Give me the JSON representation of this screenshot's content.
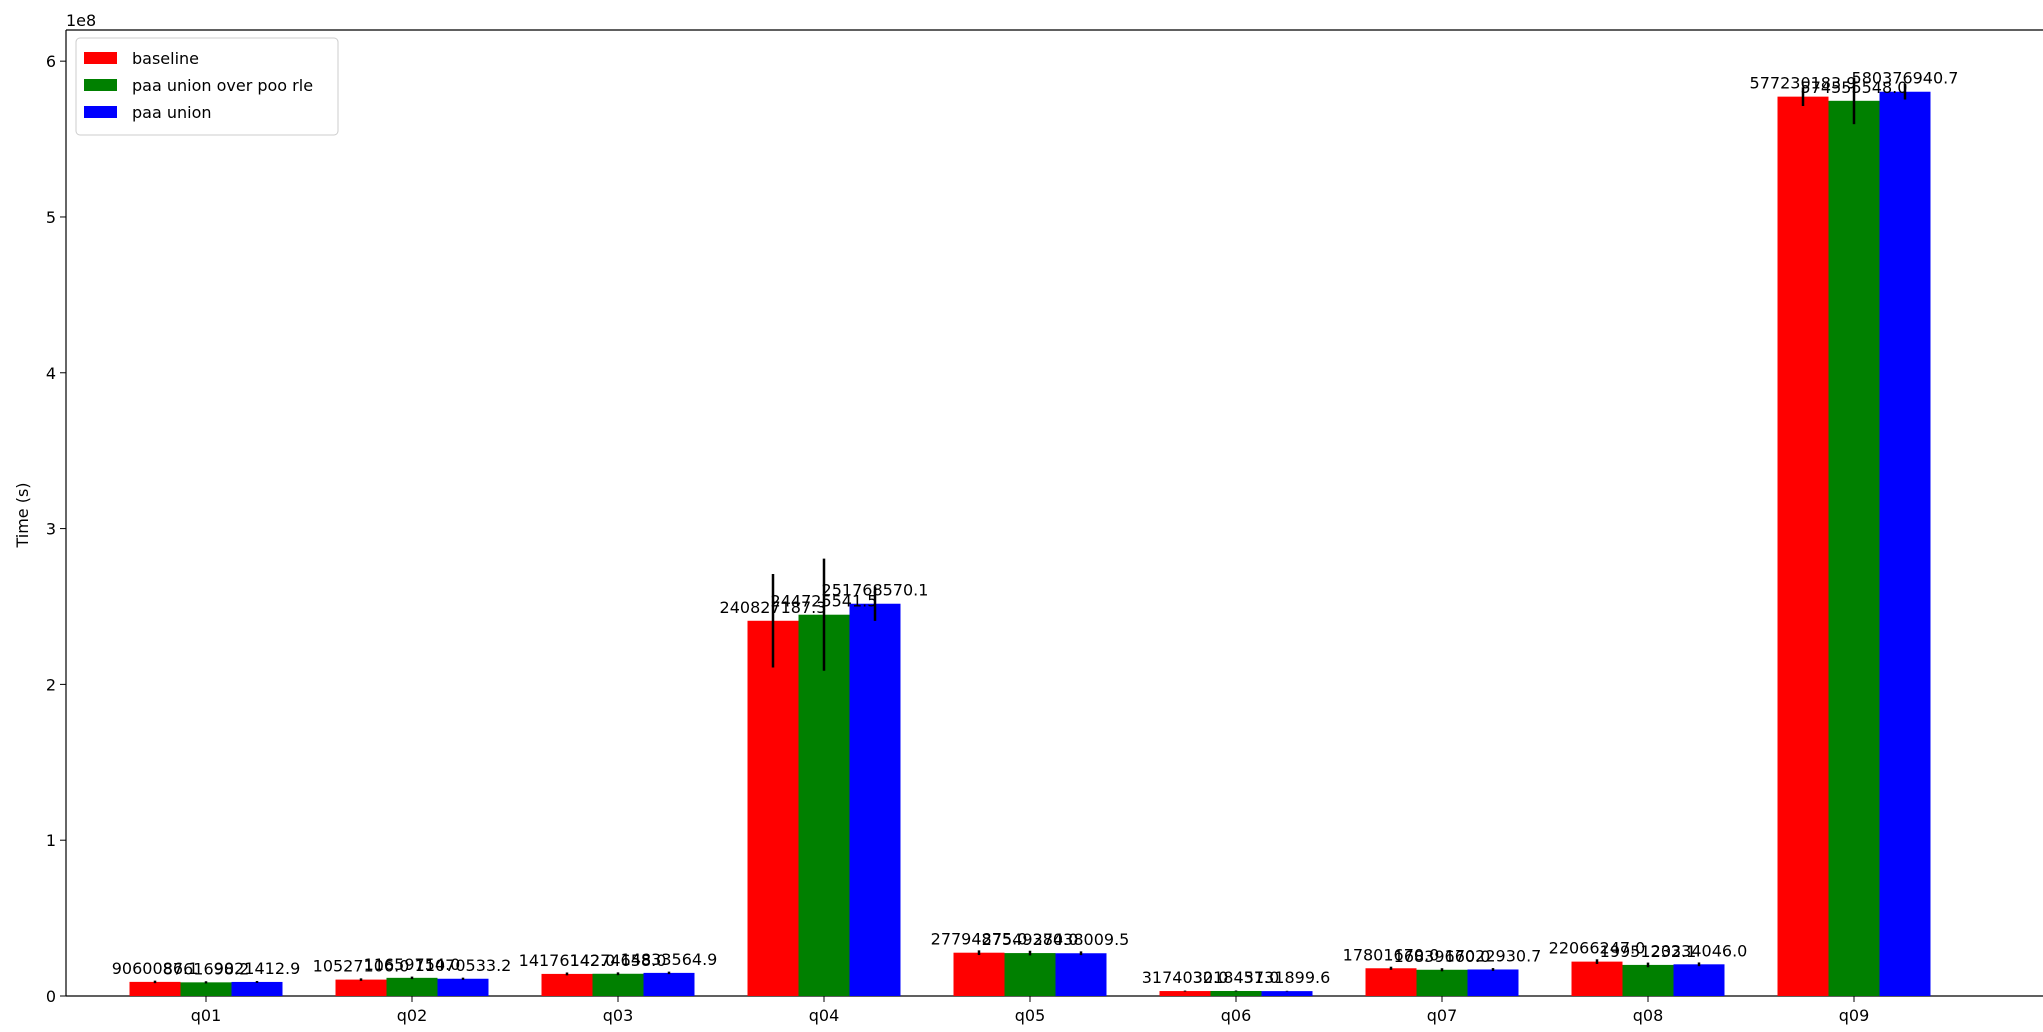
{
  "chart_data": {
    "type": "bar",
    "ylabel": "Time (s)",
    "y_offset_label": "1e8",
    "y_scale": 100000000,
    "ylim": [
      0,
      620000000
    ],
    "yticks": [
      {
        "value": 0,
        "label": "0"
      },
      {
        "value": 100000000,
        "label": "1"
      },
      {
        "value": 200000000,
        "label": "2"
      },
      {
        "value": 300000000,
        "label": "3"
      },
      {
        "value": 400000000,
        "label": "4"
      },
      {
        "value": 500000000,
        "label": "5"
      },
      {
        "value": 600000000,
        "label": "6"
      }
    ],
    "categories": [
      "q01",
      "q02",
      "q03",
      "q04",
      "q05",
      "q06",
      "q07",
      "q08",
      "q09"
    ],
    "legend_position": "upper-left",
    "series": [
      {
        "name": "baseline",
        "color": "#ff0000",
        "values": [
          9060086.1,
          10527106.0,
          14176142.0,
          240827187.3,
          27794875.0,
          3174030.0,
          17801670.0,
          22066247.0,
          577230183.9
        ],
        "labels": [
          "9060086.1",
          "10527106.0",
          "14176142.0",
          "240827187.3",
          "27794875.0",
          "3174030.0",
          "17801670.0",
          "22066247.0",
          "577230183.9"
        ],
        "errors": [
          800000,
          800000,
          900000,
          30000000,
          1500000,
          300000,
          1000000,
          1500000,
          6000000
        ]
      },
      {
        "name": "paa union over poo rle",
        "color": "#008000",
        "values": [
          8761698.2,
          11659754.0,
          14274658.0,
          244725541.5,
          27549380.0,
          3218457.0,
          16839660.0,
          19951232.1,
          574555548.0
        ],
        "labels": [
          "8761698.2",
          "11659754.0",
          "14274658.0",
          "244725541.5",
          "27549380.0",
          "3218457.0",
          "16839660.0",
          "19951232.1",
          "574555548.0"
        ],
        "errors": [
          700000,
          800000,
          900000,
          36000000,
          1500000,
          300000,
          1000000,
          1500000,
          15000000
        ]
      },
      {
        "name": "paa union",
        "color": "#0000ff",
        "values": [
          9021412.9,
          11070533.2,
          14833564.9,
          251768570.1,
          27438009.5,
          3131899.6,
          17022930.7,
          20334046.0,
          580376940.7
        ],
        "labels": [
          "9021412.9",
          "11070533.2",
          "14833564.9",
          "251768570.1",
          "27438009.5",
          "3131899.6",
          "17022930.7",
          "20334046.0",
          "580376940.7"
        ],
        "errors": [
          600000,
          700000,
          800000,
          11000000,
          1200000,
          200000,
          900000,
          1200000,
          5000000
        ]
      }
    ]
  }
}
